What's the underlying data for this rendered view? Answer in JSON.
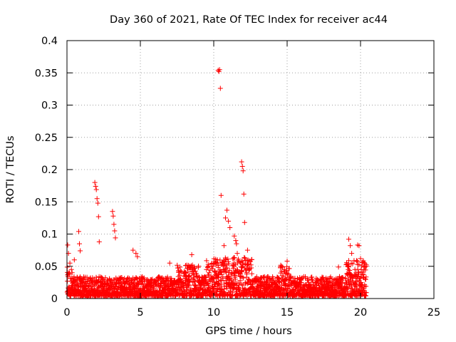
{
  "chart_data": {
    "type": "scatter",
    "title": "Day 360 of 2021, Rate Of TEC Index for receiver ac44",
    "xlabel": "GPS time / hours",
    "ylabel": "ROTI / TECUs",
    "xlim": [
      0,
      25
    ],
    "ylim": [
      0,
      0.4
    ],
    "x_ticks": [
      "0",
      "5",
      "10",
      "15",
      "20",
      "25"
    ],
    "y_ticks": [
      "0",
      "0.05",
      "0.1",
      "0.15",
      "0.2",
      "0.25",
      "0.3",
      "0.35",
      "0.4"
    ],
    "grid": true,
    "marker": "plus",
    "color": "#ff0000",
    "series": [
      {
        "x": [
          0.05,
          0.1,
          0.2,
          0.3,
          0.35,
          0.5,
          0.8,
          0.85,
          0.9,
          1.9,
          1.95,
          2.0,
          2.05,
          2.1,
          2.15,
          2.2,
          3.1,
          3.15,
          3.2,
          3.25,
          3.3,
          4.5,
          4.7,
          4.8,
          7.0,
          8.5,
          10.3,
          10.35,
          10.4,
          10.45,
          10.5,
          10.7,
          10.8,
          10.9,
          11.0,
          11.1,
          11.4,
          11.5,
          11.55,
          11.6,
          11.9,
          11.95,
          12.0,
          12.05,
          12.1,
          12.3,
          15.0,
          18.5,
          19.2,
          19.3,
          19.4,
          19.8,
          19.9,
          20.0
        ],
        "y": [
          0.083,
          0.07,
          0.055,
          0.045,
          0.04,
          0.06,
          0.104,
          0.085,
          0.074,
          0.18,
          0.174,
          0.169,
          0.155,
          0.148,
          0.127,
          0.088,
          0.135,
          0.128,
          0.115,
          0.105,
          0.094,
          0.075,
          0.07,
          0.065,
          0.055,
          0.068,
          0.354,
          0.352,
          0.355,
          0.326,
          0.16,
          0.082,
          0.125,
          0.137,
          0.12,
          0.11,
          0.097,
          0.09,
          0.085,
          0.07,
          0.212,
          0.205,
          0.198,
          0.162,
          0.118,
          0.075,
          0.058,
          0.049,
          0.092,
          0.082,
          0.07,
          0.083,
          0.082,
          0.062
        ]
      }
    ]
  }
}
